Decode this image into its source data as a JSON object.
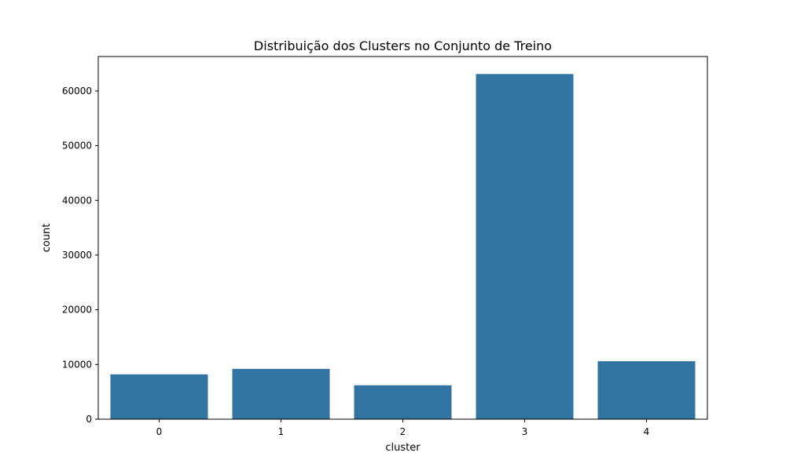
{
  "chart_data": {
    "type": "bar",
    "title": "Distribuição dos Clusters no Conjunto de Treino",
    "xlabel": "cluster",
    "ylabel": "count",
    "categories": [
      "0",
      "1",
      "2",
      "3",
      "4"
    ],
    "values": [
      8200,
      9200,
      6200,
      63100,
      10600
    ],
    "yticks": [
      0,
      10000,
      20000,
      30000,
      40000,
      50000,
      60000
    ],
    "ytick_labels": [
      "0",
      "10000",
      "20000",
      "30000",
      "40000",
      "50000",
      "60000"
    ],
    "ylim": [
      0,
      66300
    ],
    "grid": false,
    "bar_color": "#3274a1"
  }
}
